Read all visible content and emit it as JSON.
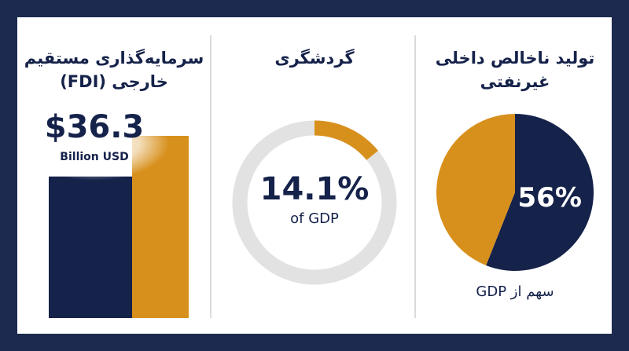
{
  "chart_data": [
    {
      "type": "bar",
      "title": [
        "سرمایه‌گذاری مستقیم",
        "خارجی (FDI)"
      ],
      "categories": [
        null,
        null
      ],
      "values": [
        28.2,
        36.3
      ],
      "colors": [
        "#15224a",
        "#d8901c"
      ],
      "value_labels": [
        null,
        "$36.3"
      ],
      "unit": "Billion USD"
    },
    {
      "type": "donut",
      "title": [
        "گردشگری"
      ],
      "values": [
        14.1
      ],
      "colors": [
        "#d8901c"
      ],
      "track_color": "#e2e2e2",
      "value_labels": [
        "14.1%"
      ],
      "caption": "of GDP"
    },
    {
      "type": "pie",
      "title": [
        "تولید ناخالص داخلی",
        "غیرنفتی"
      ],
      "values": [
        56,
        44
      ],
      "colors": [
        "#15224a",
        "#d8901c"
      ],
      "value_labels": [
        "56%",
        null
      ],
      "caption": "سهم از GDP"
    }
  ]
}
